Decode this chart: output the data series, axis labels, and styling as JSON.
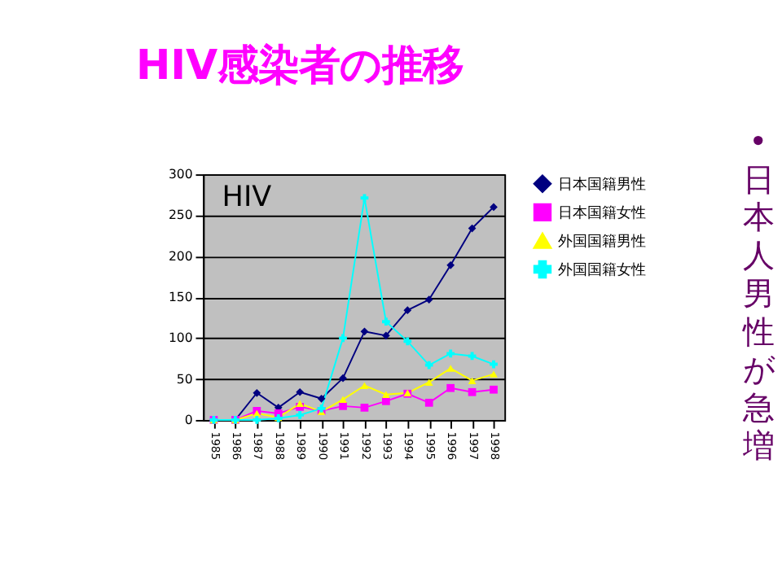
{
  "chart_data": {
    "type": "line",
    "title": "HIV感染者の推移",
    "categories": [
      "1985",
      "1986",
      "1987",
      "1988",
      "1989",
      "1990",
      "1991",
      "1992",
      "1993",
      "1994",
      "1995",
      "1996",
      "1997",
      "1998"
    ],
    "series": [
      {
        "name": "日本国籍男性",
        "color": "#000080",
        "marker": "diamond",
        "values": [
          0,
          0,
          33,
          15,
          34,
          26,
          51,
          108,
          103,
          134,
          147,
          189,
          234,
          260
        ]
      },
      {
        "name": "日本国籍女性",
        "color": "#ff00ff",
        "marker": "square",
        "values": [
          0,
          0,
          11,
          8,
          16,
          11,
          17,
          15,
          23,
          32,
          21,
          39,
          34,
          37
        ]
      },
      {
        "name": "外国国籍男性",
        "color": "#ffff00",
        "marker": "triangle",
        "values": [
          0,
          0,
          8,
          3,
          20,
          10,
          25,
          42,
          31,
          33,
          46,
          63,
          48,
          56
        ]
      },
      {
        "name": "外国国籍女性",
        "color": "#00ffff",
        "marker": "cross",
        "values": [
          0,
          0,
          0,
          2,
          6,
          14,
          100,
          271,
          120,
          96,
          67,
          81,
          78,
          68
        ]
      }
    ],
    "ylim": [
      0,
      300
    ],
    "yticks": [
      0,
      50,
      100,
      150,
      200,
      250,
      300
    ],
    "grid": "y",
    "legend": "right",
    "annotations": [
      "HIV",
      "•日本人男性が急増"
    ]
  }
}
